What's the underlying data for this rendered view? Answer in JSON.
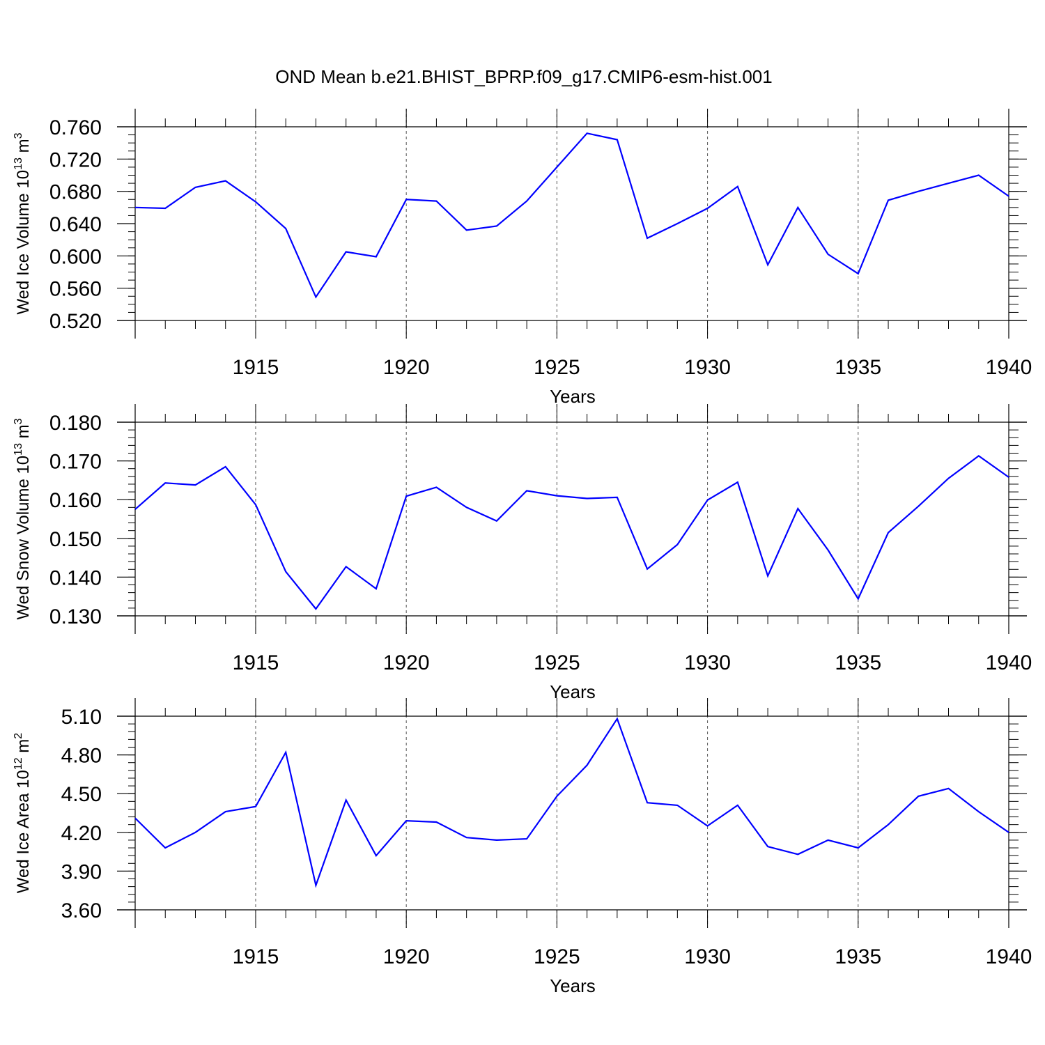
{
  "chart_data": {
    "title": "OND Mean b.e21.BHIST_BPRP.f09_g17.CMIP6-esm-hist.001",
    "panels": [
      {
        "type": "line",
        "ylabel": "Wed Ice Volume",
        "yunit_base": "10",
        "yunit_exp": "13",
        "yunit_suffix": " m",
        "yunit_suffix_exp": "3",
        "xlabel": "Years",
        "xlim": [
          1911,
          1940
        ],
        "ylim": [
          0.52,
          0.76
        ],
        "yticks": [
          0.52,
          0.56,
          0.6,
          0.64,
          0.68,
          0.72,
          0.76
        ],
        "yticklabels": [
          "0.520",
          "0.560",
          "0.600",
          "0.640",
          "0.680",
          "0.720",
          "0.760"
        ],
        "yminor_step": 0.01,
        "xticks": [
          1915,
          1920,
          1925,
          1930,
          1935,
          1940
        ],
        "xticklabels": [
          "1915",
          "1920",
          "1925",
          "1930",
          "1935",
          "1940"
        ],
        "color": "#0000ff",
        "series": [
          {
            "name": "Wed Ice Volume",
            "x": [
              1911,
              1912,
              1913,
              1914,
              1915,
              1916,
              1917,
              1918,
              1919,
              1920,
              1921,
              1922,
              1923,
              1924,
              1925,
              1926,
              1927,
              1928,
              1929,
              1930,
              1931,
              1932,
              1933,
              1934,
              1935,
              1936,
              1937,
              1938,
              1939,
              1940
            ],
            "y": [
              0.66,
              0.659,
              0.685,
              0.693,
              0.667,
              0.634,
              0.549,
              0.605,
              0.599,
              0.67,
              0.668,
              0.632,
              0.637,
              0.668,
              0.71,
              0.752,
              0.744,
              0.622,
              0.64,
              0.659,
              0.686,
              0.589,
              0.66,
              0.602,
              0.578,
              0.669,
              0.68,
              0.69,
              0.7,
              0.674
            ]
          }
        ]
      },
      {
        "type": "line",
        "ylabel": "Wed Snow Volume",
        "yunit_base": "10",
        "yunit_exp": "13",
        "yunit_suffix": " m",
        "yunit_suffix_exp": "3",
        "xlabel": "Years",
        "xlim": [
          1911,
          1940
        ],
        "ylim": [
          0.13,
          0.18
        ],
        "yticks": [
          0.13,
          0.14,
          0.15,
          0.16,
          0.17,
          0.18
        ],
        "yticklabels": [
          "0.130",
          "0.140",
          "0.150",
          "0.160",
          "0.170",
          "0.180"
        ],
        "yminor_step": 0.002,
        "xticks": [
          1915,
          1920,
          1925,
          1930,
          1935,
          1940
        ],
        "xticklabels": [
          "1915",
          "1920",
          "1925",
          "1930",
          "1935",
          "1940"
        ],
        "color": "#0000ff",
        "series": [
          {
            "name": "Wed Snow Volume",
            "x": [
              1911,
              1912,
              1913,
              1914,
              1915,
              1916,
              1917,
              1918,
              1919,
              1920,
              1921,
              1922,
              1923,
              1924,
              1925,
              1926,
              1927,
              1928,
              1929,
              1930,
              1931,
              1932,
              1933,
              1934,
              1935,
              1936,
              1937,
              1938,
              1939,
              1940
            ],
            "y": [
              0.1575,
              0.1643,
              0.1638,
              0.1685,
              0.1587,
              0.1414,
              0.1318,
              0.1427,
              0.137,
              0.1609,
              0.1632,
              0.158,
              0.1545,
              0.1623,
              0.161,
              0.1603,
              0.1606,
              0.1421,
              0.1484,
              0.1599,
              0.1645,
              0.1403,
              0.1577,
              0.147,
              0.1344,
              0.1515,
              0.1583,
              0.1655,
              0.1713,
              0.1658
            ]
          }
        ]
      },
      {
        "type": "line",
        "ylabel": "Wed Ice Area",
        "yunit_base": "10",
        "yunit_exp": "12",
        "yunit_suffix": " m",
        "yunit_suffix_exp": "2",
        "xlabel": "Years",
        "xlim": [
          1911,
          1940
        ],
        "ylim": [
          3.6,
          5.1
        ],
        "yticks": [
          3.6,
          3.9,
          4.2,
          4.5,
          4.8,
          5.1
        ],
        "yticklabels": [
          "3.60",
          "3.90",
          "4.20",
          "4.50",
          "4.80",
          "5.10"
        ],
        "yminor_step": 0.06,
        "xticks": [
          1915,
          1920,
          1925,
          1930,
          1935,
          1940
        ],
        "xticklabels": [
          "1915",
          "1920",
          "1925",
          "1930",
          "1935",
          "1940"
        ],
        "color": "#0000ff",
        "series": [
          {
            "name": "Wed Ice Area",
            "x": [
              1911,
              1912,
              1913,
              1914,
              1915,
              1916,
              1917,
              1918,
              1919,
              1920,
              1921,
              1922,
              1923,
              1924,
              1925,
              1926,
              1927,
              1928,
              1929,
              1930,
              1931,
              1932,
              1933,
              1934,
              1935,
              1936,
              1937,
              1938,
              1939,
              1940
            ],
            "y": [
              4.31,
              4.08,
              4.2,
              4.36,
              4.4,
              4.82,
              3.79,
              4.45,
              4.02,
              4.29,
              4.28,
              4.16,
              4.14,
              4.15,
              4.48,
              4.72,
              5.08,
              4.43,
              4.41,
              4.25,
              4.41,
              4.09,
              4.03,
              4.14,
              4.08,
              4.26,
              4.48,
              4.54,
              4.36,
              4.2
            ]
          }
        ]
      }
    ]
  }
}
